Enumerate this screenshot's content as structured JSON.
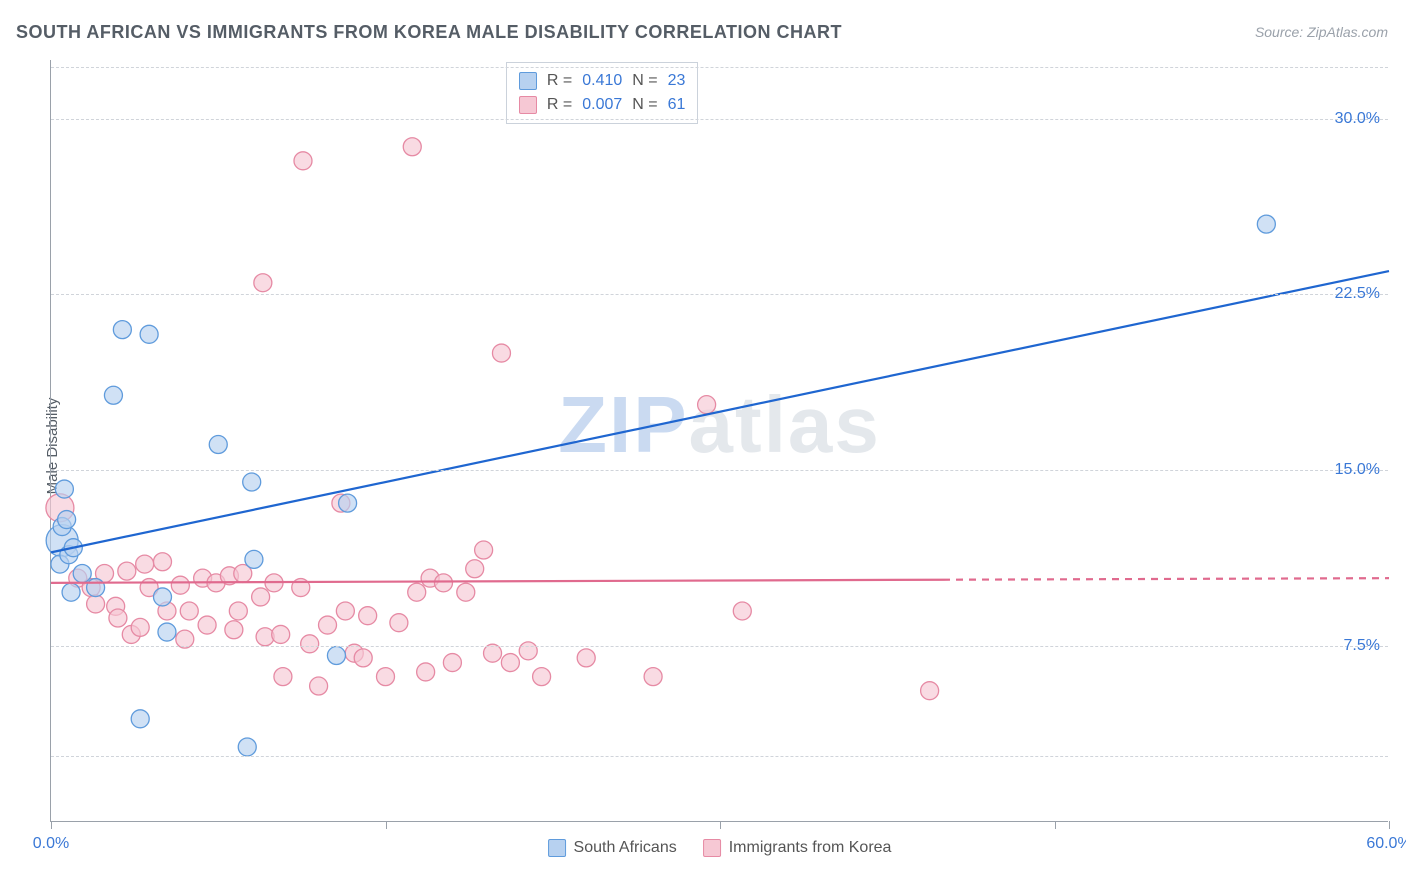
{
  "title": "SOUTH AFRICAN VS IMMIGRANTS FROM KOREA MALE DISABILITY CORRELATION CHART",
  "source": "Source: ZipAtlas.com",
  "ylabel": "Male Disability",
  "watermark": {
    "prefix": "ZIP",
    "suffix": "atlas"
  },
  "xlim": [
    0,
    60
  ],
  "ylim": [
    0,
    32.5
  ],
  "yticks": [
    {
      "v": 7.5,
      "label": "7.5%"
    },
    {
      "v": 15.0,
      "label": "15.0%"
    },
    {
      "v": 22.5,
      "label": "22.5%"
    },
    {
      "v": 30.0,
      "label": "30.0%"
    }
  ],
  "y_gridlines": [
    2.8,
    7.5,
    15.0,
    22.5,
    30.0,
    32.2
  ],
  "xticks_at": [
    0,
    15,
    30,
    45,
    60
  ],
  "xlabels": [
    {
      "v": 0,
      "label": "0.0%"
    },
    {
      "v": 60,
      "label": "60.0%"
    }
  ],
  "colors": {
    "series_a_fill": "#b7d1f0",
    "series_a_stroke": "#5f9bdc",
    "series_a_line": "#1f66d0",
    "series_b_fill": "#f6c8d4",
    "series_b_stroke": "#e68aa4",
    "series_b_line": "#e06a8e",
    "tick_text": "#3a78d6",
    "grid": "#d0d4da"
  },
  "marker_radius_default": 9,
  "marker_opacity": 0.65,
  "line_width": 2.2,
  "legend_top": {
    "rows": [
      {
        "swatch": "a",
        "r_label": "R =",
        "r_value": "0.410",
        "n_label": "N =",
        "n_value": "23"
      },
      {
        "swatch": "b",
        "r_label": "R =",
        "r_value": "0.007",
        "n_label": "N =",
        "n_value": "61"
      }
    ]
  },
  "legend_bottom": {
    "a_label": "South Africans",
    "b_label": "Immigrants from Korea"
  },
  "series_a": {
    "name": "South Africans",
    "regression": {
      "x1": 0,
      "y1": 11.5,
      "x2": 60,
      "y2": 23.5
    },
    "points": [
      {
        "x": 0.5,
        "y": 12.0,
        "r": 16
      },
      {
        "x": 0.6,
        "y": 14.2
      },
      {
        "x": 0.4,
        "y": 11.0
      },
      {
        "x": 0.8,
        "y": 11.4
      },
      {
        "x": 0.5,
        "y": 12.6
      },
      {
        "x": 3.2,
        "y": 21.0
      },
      {
        "x": 4.4,
        "y": 20.8
      },
      {
        "x": 2.8,
        "y": 18.2
      },
      {
        "x": 7.5,
        "y": 16.1
      },
      {
        "x": 5.0,
        "y": 9.6
      },
      {
        "x": 5.2,
        "y": 8.1
      },
      {
        "x": 8.8,
        "y": 3.2
      },
      {
        "x": 4.0,
        "y": 4.4
      },
      {
        "x": 9.0,
        "y": 14.5
      },
      {
        "x": 9.1,
        "y": 11.2
      },
      {
        "x": 12.8,
        "y": 7.1
      },
      {
        "x": 13.3,
        "y": 13.6
      },
      {
        "x": 54.5,
        "y": 25.5
      },
      {
        "x": 0.9,
        "y": 9.8
      },
      {
        "x": 1.4,
        "y": 10.6
      },
      {
        "x": 2.0,
        "y": 10.0
      },
      {
        "x": 0.7,
        "y": 12.9
      },
      {
        "x": 1.0,
        "y": 11.7
      }
    ]
  },
  "series_b": {
    "name": "Immigrants from Korea",
    "regression": {
      "x1": 0,
      "y1": 10.2,
      "x2": 60,
      "y2": 10.4,
      "solid_until_x": 40
    },
    "points": [
      {
        "x": 0.4,
        "y": 13.4,
        "r": 14
      },
      {
        "x": 1.2,
        "y": 10.4
      },
      {
        "x": 1.8,
        "y": 10.0
      },
      {
        "x": 2.4,
        "y": 10.6
      },
      {
        "x": 2.0,
        "y": 9.3
      },
      {
        "x": 2.9,
        "y": 9.2
      },
      {
        "x": 3.4,
        "y": 10.7
      },
      {
        "x": 3.0,
        "y": 8.7
      },
      {
        "x": 3.6,
        "y": 8.0
      },
      {
        "x": 4.4,
        "y": 10.0
      },
      {
        "x": 4.2,
        "y": 11.0
      },
      {
        "x": 5.2,
        "y": 9.0
      },
      {
        "x": 5.0,
        "y": 11.1
      },
      {
        "x": 5.8,
        "y": 10.1
      },
      {
        "x": 6.8,
        "y": 10.4
      },
      {
        "x": 6.2,
        "y": 9.0
      },
      {
        "x": 7.4,
        "y": 10.2
      },
      {
        "x": 7.0,
        "y": 8.4
      },
      {
        "x": 8.0,
        "y": 10.5
      },
      {
        "x": 8.2,
        "y": 8.2
      },
      {
        "x": 8.6,
        "y": 10.6
      },
      {
        "x": 9.4,
        "y": 9.6
      },
      {
        "x": 9.6,
        "y": 7.9
      },
      {
        "x": 10.0,
        "y": 10.2
      },
      {
        "x": 10.3,
        "y": 8.0
      },
      {
        "x": 10.4,
        "y": 6.2
      },
      {
        "x": 11.6,
        "y": 7.6
      },
      {
        "x": 11.2,
        "y": 10.0
      },
      {
        "x": 12.0,
        "y": 5.8
      },
      {
        "x": 12.4,
        "y": 8.4
      },
      {
        "x": 13.0,
        "y": 13.6
      },
      {
        "x": 13.2,
        "y": 9.0
      },
      {
        "x": 13.6,
        "y": 7.2
      },
      {
        "x": 14.2,
        "y": 8.8
      },
      {
        "x": 14.0,
        "y": 7.0
      },
      {
        "x": 15.0,
        "y": 6.2
      },
      {
        "x": 15.6,
        "y": 8.5
      },
      {
        "x": 16.4,
        "y": 9.8
      },
      {
        "x": 16.8,
        "y": 6.4
      },
      {
        "x": 17.0,
        "y": 10.4
      },
      {
        "x": 17.6,
        "y": 10.2
      },
      {
        "x": 16.2,
        "y": 28.8
      },
      {
        "x": 11.3,
        "y": 28.2
      },
      {
        "x": 9.5,
        "y": 23.0
      },
      {
        "x": 18.6,
        "y": 9.8
      },
      {
        "x": 18.0,
        "y": 6.8
      },
      {
        "x": 19.0,
        "y": 10.8
      },
      {
        "x": 19.4,
        "y": 11.6
      },
      {
        "x": 19.8,
        "y": 7.2
      },
      {
        "x": 20.2,
        "y": 20.0
      },
      {
        "x": 20.6,
        "y": 6.8
      },
      {
        "x": 21.4,
        "y": 7.3
      },
      {
        "x": 22.0,
        "y": 6.2
      },
      {
        "x": 24.0,
        "y": 7.0
      },
      {
        "x": 27.0,
        "y": 6.2
      },
      {
        "x": 29.4,
        "y": 17.8
      },
      {
        "x": 31.0,
        "y": 9.0
      },
      {
        "x": 39.4,
        "y": 5.6
      },
      {
        "x": 4.0,
        "y": 8.3
      },
      {
        "x": 6.0,
        "y": 7.8
      },
      {
        "x": 8.4,
        "y": 9.0
      }
    ]
  }
}
